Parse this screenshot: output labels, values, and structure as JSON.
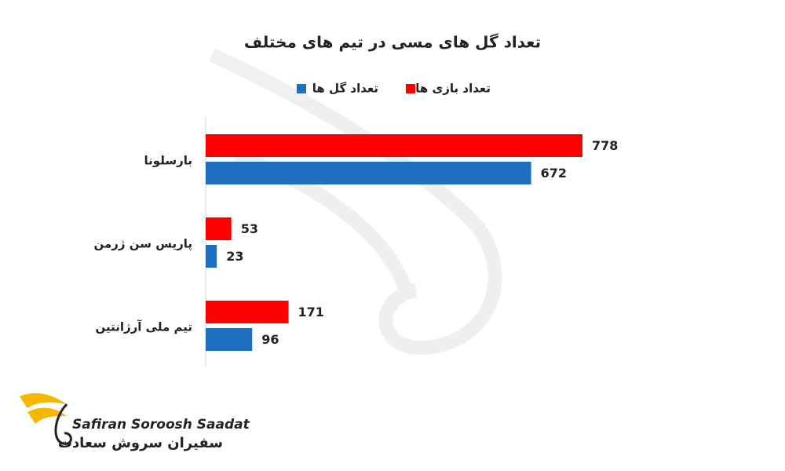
{
  "chart_data": {
    "type": "bar",
    "orientation": "horizontal",
    "title": "تعداد گل های مسی در تیم های مختلف",
    "categories": [
      "بارسلونا",
      "پاریس سن ژرمن",
      "تیم ملی آرژانتین"
    ],
    "series": [
      {
        "name": "تعداد بازی ها",
        "color": "#ff0000",
        "values": [
          778,
          53,
          171
        ]
      },
      {
        "name": "تعداد گل ها",
        "color": "#1f6fc0",
        "values": [
          672,
          23,
          96
        ]
      }
    ]
  },
  "logo": {
    "name_latin": "Safiran Soroosh Saadat",
    "name_persian": "سفیران سروش سعادت"
  }
}
